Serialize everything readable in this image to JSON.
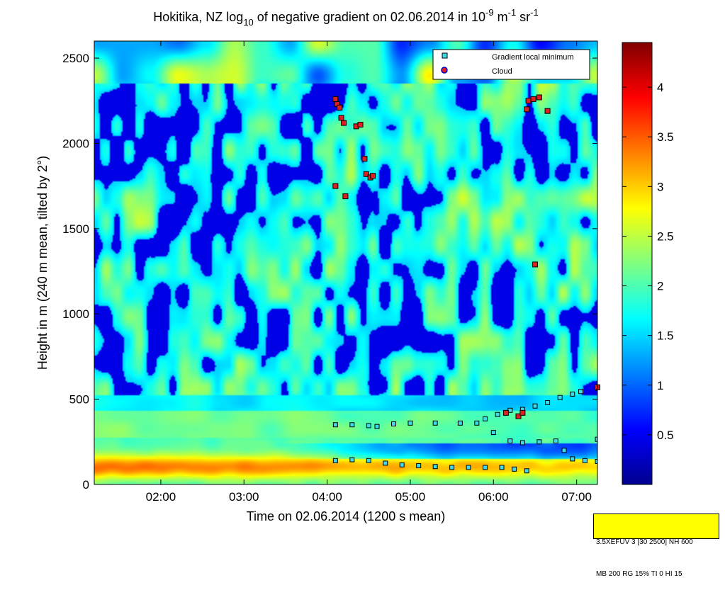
{
  "chart_data": {
    "type": "heatmap",
    "title": {
      "prefix": "Hokitika, NZ log",
      "prefix_sub": "10",
      "middle": " of negative gradient on 02.06.2014 in 10",
      "exp1": "-9",
      "unit1": " m",
      "exp2": "-1",
      "unit2": " sr",
      "exp3": "-1"
    },
    "xlabel": "Time on 02.06.2014 (1200 s mean)",
    "ylabel": "Height in m (240 m mean, tilted by 2°)",
    "x_range_hours": [
      1.2,
      7.25
    ],
    "y_range_m": [
      0,
      2600
    ],
    "x_ticks": [
      {
        "value": 2,
        "label": "02:00"
      },
      {
        "value": 3,
        "label": "03:00"
      },
      {
        "value": 4,
        "label": "04:00"
      },
      {
        "value": 5,
        "label": "05:00"
      },
      {
        "value": 6,
        "label": "06:00"
      },
      {
        "value": 7,
        "label": "07:00"
      }
    ],
    "y_ticks": [
      {
        "value": 0,
        "label": "0"
      },
      {
        "value": 500,
        "label": "500"
      },
      {
        "value": 1000,
        "label": "1000"
      },
      {
        "value": 1500,
        "label": "1500"
      },
      {
        "value": 2000,
        "label": "2000"
      },
      {
        "value": 2500,
        "label": "2500"
      }
    ],
    "colorbar": {
      "range": [
        0,
        4.45
      ],
      "ticks": [
        {
          "value": 0.5,
          "label": "0.5"
        },
        {
          "value": 1,
          "label": "1"
        },
        {
          "value": 1.5,
          "label": "1.5"
        },
        {
          "value": 2,
          "label": "2"
        },
        {
          "value": 2.5,
          "label": "2.5"
        },
        {
          "value": 3,
          "label": "3"
        },
        {
          "value": 3.5,
          "label": "3.5"
        },
        {
          "value": 4,
          "label": "4"
        }
      ],
      "colormap": "jet"
    },
    "legend": {
      "placement": "top-right",
      "entries": [
        {
          "label": "Gradient local minimum",
          "marker": "square",
          "color": "#3fd9ea"
        },
        {
          "label": "Cloud",
          "marker": "circle",
          "color": "#e02020"
        }
      ]
    },
    "series": [
      {
        "name": "Gradient local minimum",
        "color": "#3fd9ea",
        "points": [
          [
            4.1,
            350
          ],
          [
            4.3,
            350
          ],
          [
            4.5,
            345
          ],
          [
            4.6,
            340
          ],
          [
            4.8,
            355
          ],
          [
            5.0,
            360
          ],
          [
            5.3,
            360
          ],
          [
            5.6,
            360
          ],
          [
            5.8,
            360
          ],
          [
            5.9,
            385
          ],
          [
            6.05,
            410
          ],
          [
            6.2,
            435
          ],
          [
            6.35,
            440
          ],
          [
            6.5,
            460
          ],
          [
            6.65,
            480
          ],
          [
            6.8,
            510
          ],
          [
            6.95,
            530
          ],
          [
            7.05,
            545
          ],
          [
            7.25,
            565
          ],
          [
            4.1,
            140
          ],
          [
            4.3,
            145
          ],
          [
            4.5,
            140
          ],
          [
            4.7,
            125
          ],
          [
            4.9,
            115
          ],
          [
            5.1,
            110
          ],
          [
            5.3,
            105
          ],
          [
            5.5,
            100
          ],
          [
            5.7,
            100
          ],
          [
            5.9,
            100
          ],
          [
            6.1,
            100
          ],
          [
            6.25,
            90
          ],
          [
            6.4,
            80
          ],
          [
            6.0,
            305
          ],
          [
            6.2,
            255
          ],
          [
            6.35,
            245
          ],
          [
            6.55,
            250
          ],
          [
            6.75,
            255
          ],
          [
            6.85,
            200
          ],
          [
            6.95,
            150
          ],
          [
            7.1,
            140
          ],
          [
            7.25,
            135
          ],
          [
            7.25,
            265
          ]
        ]
      },
      {
        "name": "Cloud",
        "color": "#e02020",
        "points": [
          [
            4.1,
            2260
          ],
          [
            4.12,
            2230
          ],
          [
            4.15,
            2210
          ],
          [
            4.17,
            2150
          ],
          [
            4.2,
            2120
          ],
          [
            4.35,
            2100
          ],
          [
            4.4,
            2110
          ],
          [
            4.45,
            1910
          ],
          [
            4.47,
            1820
          ],
          [
            4.52,
            1800
          ],
          [
            4.55,
            1810
          ],
          [
            4.1,
            1750
          ],
          [
            4.22,
            1690
          ],
          [
            6.4,
            2200
          ],
          [
            6.42,
            2250
          ],
          [
            6.48,
            2260
          ],
          [
            6.55,
            2270
          ],
          [
            6.65,
            2190
          ],
          [
            6.5,
            1290
          ],
          [
            6.15,
            420
          ],
          [
            6.3,
            400
          ],
          [
            6.35,
            420
          ],
          [
            7.25,
            570
          ]
        ]
      }
    ]
  },
  "info_box": {
    "line1": "3.5XEFUV 3 [30 2500] NH 600",
    "line2": "MB 200 RG 15% TI 0 HI 15"
  }
}
